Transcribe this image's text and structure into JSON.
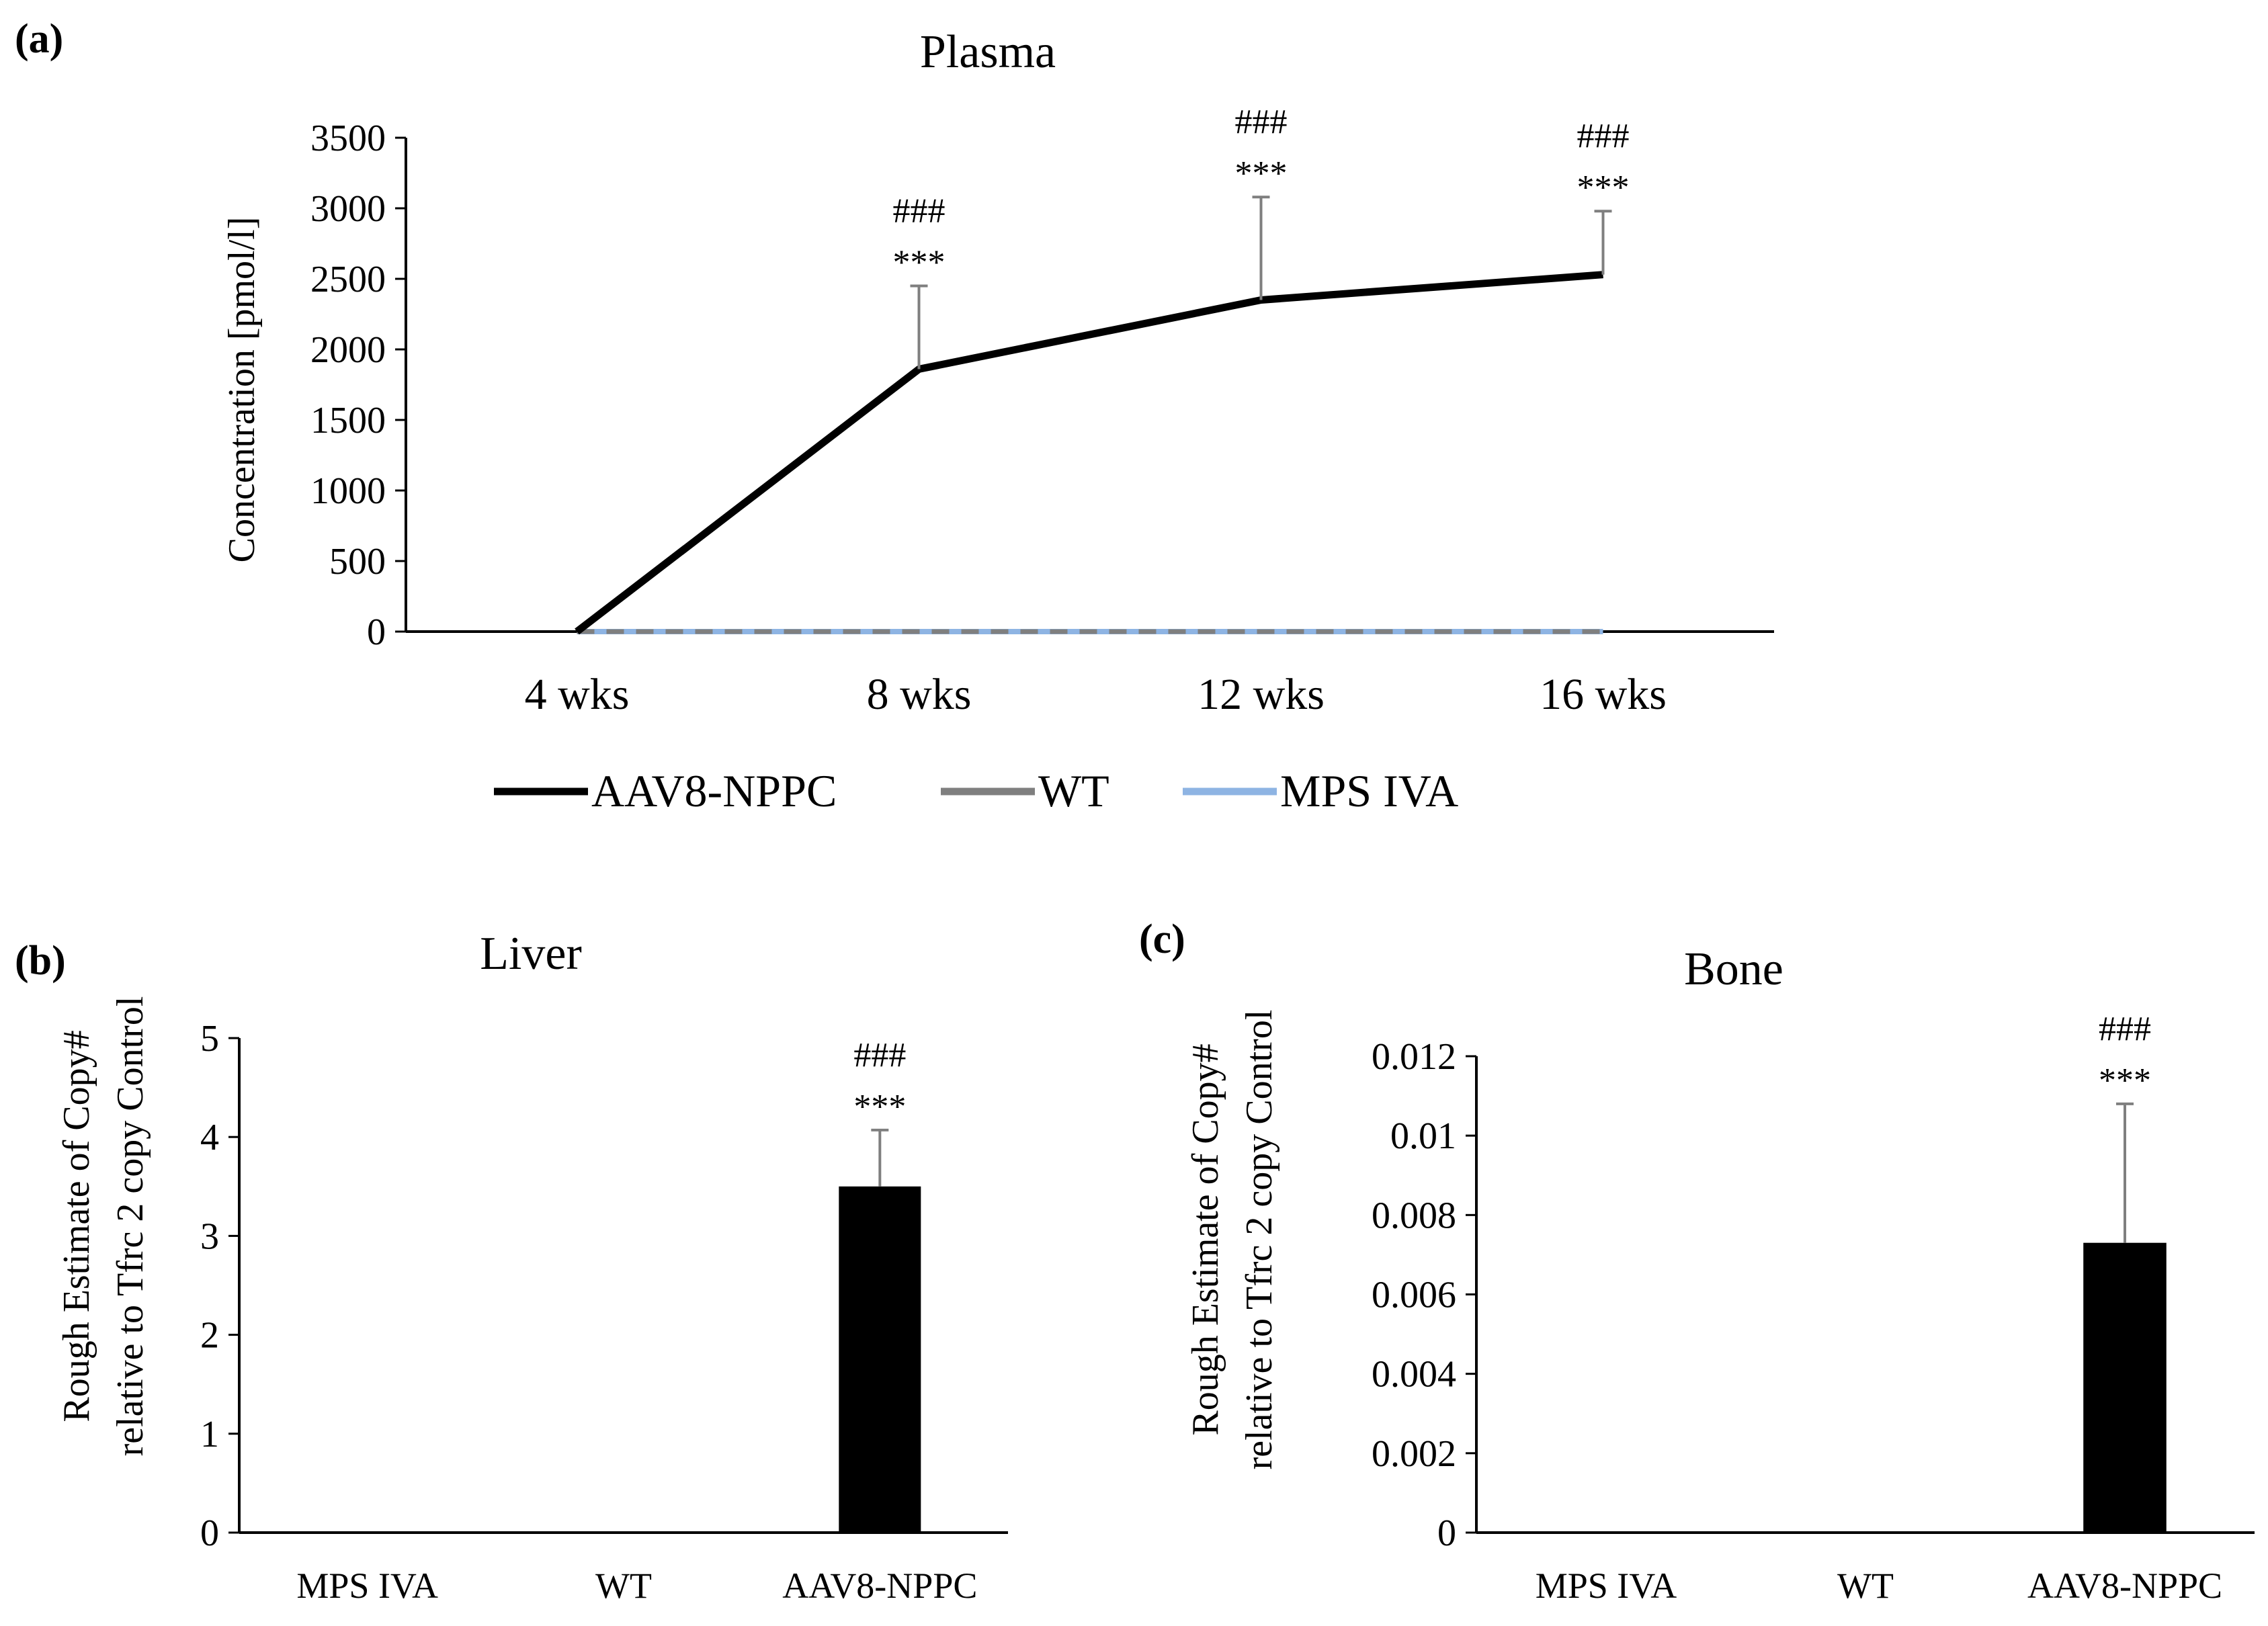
{
  "chart_data": [
    {
      "panel": "(a)",
      "type": "line",
      "title": "Plasma",
      "ylabel": "Concentration [pmol/l]",
      "xlabel": "",
      "ylim": [
        0,
        3500
      ],
      "yticks": [
        0,
        500,
        1000,
        1500,
        2000,
        2500,
        3000,
        3500
      ],
      "categories": [
        "4 wks",
        "8 wks",
        "12 wks",
        "16 wks"
      ],
      "series": [
        {
          "name": "AAV8-NPPC",
          "color": "#000000",
          "values": [
            0,
            1860,
            2350,
            2530
          ],
          "error": [
            0,
            590,
            730,
            450
          ],
          "sig_stars": [
            "",
            "***",
            "***",
            "***"
          ],
          "sig_hash": [
            "",
            "###",
            "###",
            "###"
          ]
        },
        {
          "name": "WT",
          "color": "#7f7f7f",
          "values": [
            0,
            0,
            0,
            0
          ]
        },
        {
          "name": "MPS IVA",
          "color": "#8eb4e3",
          "values": [
            0,
            0,
            0,
            0
          ]
        }
      ],
      "legend_position": "bottom"
    },
    {
      "panel": "(b)",
      "type": "bar",
      "title": "Liver",
      "ylabel": [
        "Rough Estimate of Copy#",
        "relative to Tfrc 2 copy Control"
      ],
      "ylim": [
        0,
        5
      ],
      "yticks": [
        "0",
        "1",
        "2",
        "3",
        "4",
        "5"
      ],
      "categories": [
        "MPS IVA",
        "WT",
        "AAV8-NPPC"
      ],
      "values": [
        0,
        0,
        3.5
      ],
      "error": [
        0,
        0,
        0.57
      ],
      "sig_stars": [
        "",
        "",
        "***"
      ],
      "sig_hash": [
        "",
        "",
        "###"
      ],
      "bar_color": "#000000"
    },
    {
      "panel": "(c)",
      "type": "bar",
      "title": "Bone",
      "ylabel": [
        "Rough Estimate of Copy#",
        "relative to Tfrc 2 copy Control"
      ],
      "ylim": [
        0,
        0.012
      ],
      "yticks": [
        "0",
        "0.002",
        "0.004",
        "0.006",
        "0.008",
        "0.01",
        "0.012"
      ],
      "categories": [
        "MPS IVA",
        "WT",
        "AAV8-NPPC"
      ],
      "values": [
        0,
        0,
        0.0073
      ],
      "error": [
        0,
        0,
        0.0035
      ],
      "sig_stars": [
        "",
        "",
        "***"
      ],
      "sig_hash": [
        "",
        "",
        "###"
      ],
      "bar_color": "#000000"
    }
  ]
}
